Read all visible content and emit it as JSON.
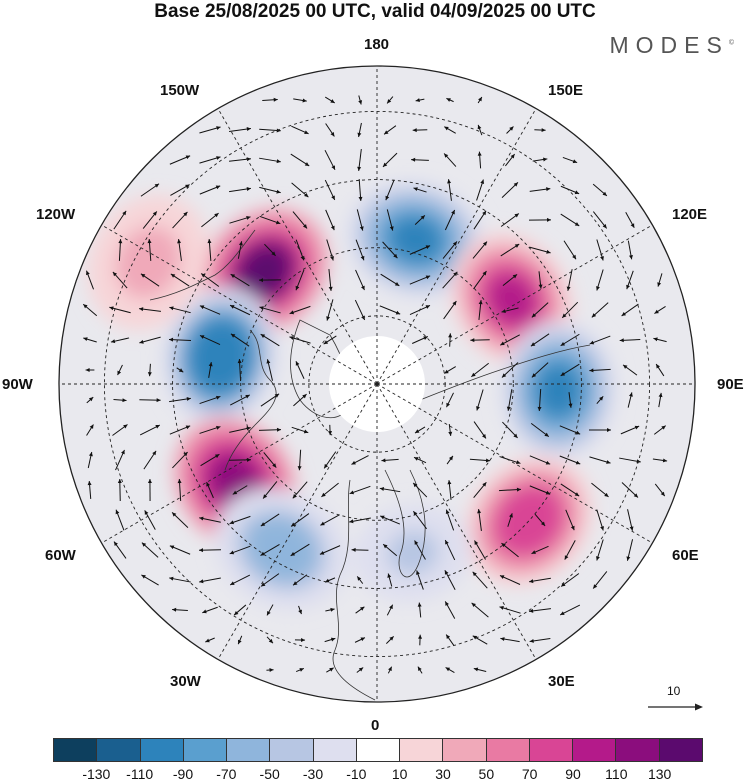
{
  "title": "Base 25/08/2025 00 UTC, valid 04/09/2025 00 UTC",
  "logo": {
    "text": "MODES",
    "mark": "©"
  },
  "longitude_labels": {
    "lon_180": "180",
    "lon_150E": "150E",
    "lon_120E": "120E",
    "lon_90E": "90E",
    "lon_60E": "60E",
    "lon_30E": "30E",
    "lon_0": "0",
    "lon_30W": "30W",
    "lon_60W": "60W",
    "lon_90W": "90W",
    "lon_120W": "120W",
    "lon_150W": "150W"
  },
  "vector_scale": {
    "label": "10",
    "reference_speed": 10
  },
  "colorbar": {
    "colors": [
      "#0d3f5e",
      "#1a5f8f",
      "#2d83bb",
      "#5a9fcf",
      "#8fb5dc",
      "#b7c6e3",
      "#dedfef",
      "#ffffff",
      "#f7d5d8",
      "#f0a9b9",
      "#e97aa3",
      "#d94595",
      "#b41a8a",
      "#8b0d7d",
      "#5b0a6e"
    ],
    "ticks": [
      "-130",
      "-110",
      "-90",
      "-70",
      "-50",
      "-30",
      "-10",
      "10",
      "30",
      "50",
      "70",
      "90",
      "110",
      "130"
    ]
  },
  "map_data": {
    "projection": "north-polar-stereographic",
    "field": "height anomaly",
    "anomaly_centers": [
      {
        "sign": "positive",
        "lon": -135,
        "lat": 55,
        "max": 135
      },
      {
        "sign": "negative",
        "lon": 165,
        "lat": 57,
        "max": -100
      },
      {
        "sign": "positive",
        "lon": 122,
        "lat": 55,
        "max": 105
      },
      {
        "sign": "negative",
        "lon": -100,
        "lat": 55,
        "max": -110
      },
      {
        "sign": "negative",
        "lon": 88,
        "lat": 50,
        "max": -100
      },
      {
        "sign": "positive",
        "lon": -55,
        "lat": 52,
        "max": 120
      },
      {
        "sign": "positive",
        "lon": 48,
        "lat": 45,
        "max": 85
      },
      {
        "sign": "negative",
        "lon": -30,
        "lat": 48,
        "max": -60
      },
      {
        "sign": "positive",
        "lon": -118,
        "lat": 33,
        "max": 45
      },
      {
        "sign": "negative",
        "lon": 12,
        "lat": 52,
        "max": -35
      }
    ]
  }
}
